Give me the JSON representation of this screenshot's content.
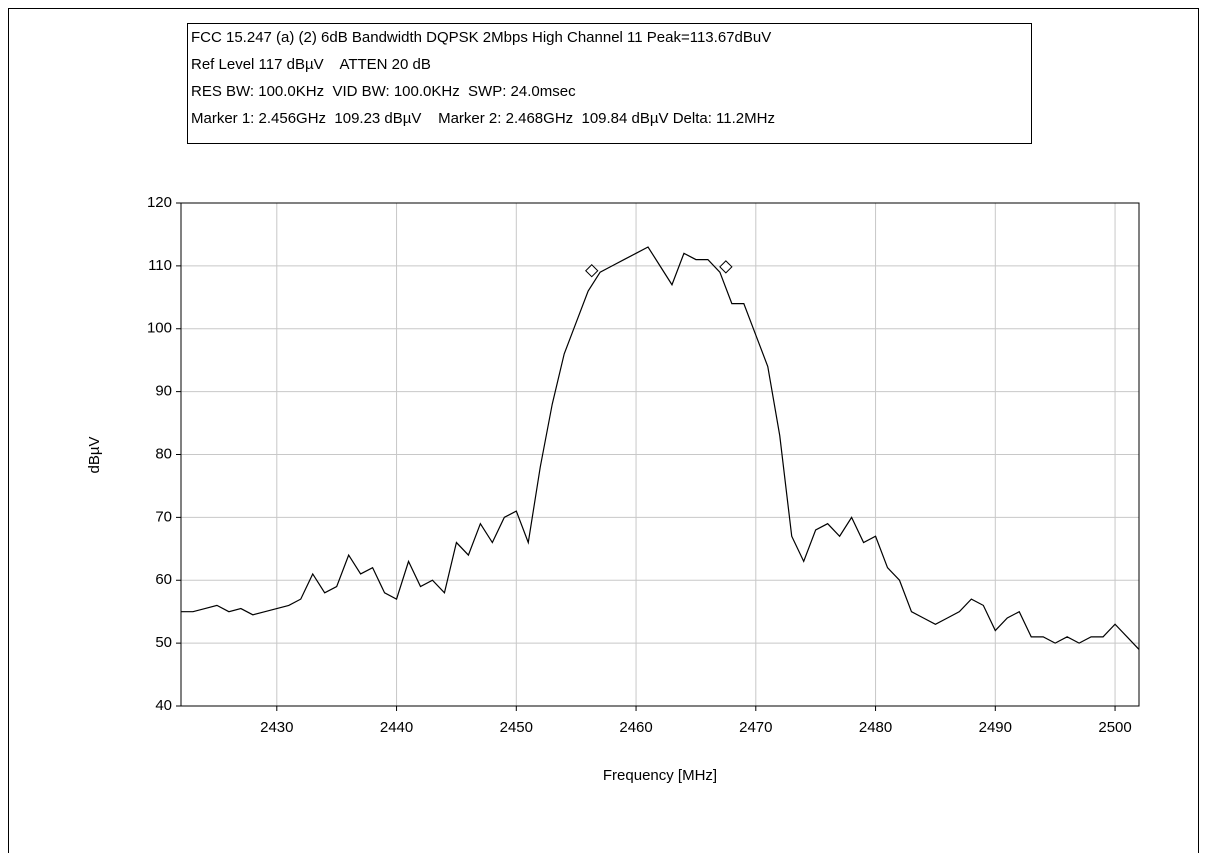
{
  "chart_data": {
    "type": "line",
    "title_lines": [
      "FCC 15.247 (a) (2) 6dB Bandwidth DQPSK 2Mbps High Channel 11 Peak=113.67dBuV",
      "Ref Level 117 dBµV    ATTEN 20 dB",
      "RES BW: 100.0KHz  VID BW: 100.0KHz  SWP: 24.0msec",
      "Marker 1: 2.456GHz  109.23 dBµV    Marker 2: 2.468GHz  109.84 dBµV Delta: 11.2MHz"
    ],
    "xlabel": "Frequency [MHz]",
    "ylabel": "dBµV",
    "x": [
      2422,
      2423,
      2424,
      2425,
      2426,
      2427,
      2428,
      2429,
      2430,
      2431,
      2432,
      2433,
      2434,
      2435,
      2436,
      2437,
      2438,
      2439,
      2440,
      2441,
      2442,
      2443,
      2444,
      2445,
      2446,
      2447,
      2448,
      2449,
      2450,
      2451,
      2452,
      2453,
      2454,
      2455,
      2456,
      2457,
      2458,
      2459,
      2460,
      2461,
      2462,
      2463,
      2464,
      2465,
      2466,
      2467,
      2468,
      2469,
      2470,
      2471,
      2472,
      2473,
      2474,
      2475,
      2476,
      2477,
      2478,
      2479,
      2480,
      2481,
      2482,
      2483,
      2484,
      2485,
      2486,
      2487,
      2488,
      2489,
      2490,
      2491,
      2492,
      2493,
      2494,
      2495,
      2496,
      2497,
      2498,
      2499,
      2500,
      2501,
      2502
    ],
    "series": [
      {
        "name": "trace",
        "color": "#000000",
        "values": [
          55,
          55,
          55.5,
          56,
          55,
          55.5,
          54.5,
          55,
          55.5,
          56,
          57,
          61,
          58,
          59,
          64,
          61,
          62,
          58,
          57,
          63,
          59,
          60,
          58,
          66,
          64,
          69,
          66,
          70,
          71,
          66,
          78,
          88,
          96,
          101,
          106,
          109,
          110,
          111,
          112,
          113,
          110,
          107,
          112,
          111,
          111,
          109,
          104,
          104,
          99,
          94,
          83,
          67,
          63,
          68,
          69,
          67,
          70,
          66,
          67,
          62,
          60,
          55,
          54,
          53,
          54,
          55,
          57,
          56,
          52,
          54,
          55,
          51,
          51,
          50,
          51,
          50,
          51,
          51,
          53,
          51,
          49
        ]
      }
    ],
    "markers": [
      {
        "x": 2456.3,
        "y": 109.23
      },
      {
        "x": 2467.5,
        "y": 109.84
      }
    ],
    "xlim": [
      2422,
      2502
    ],
    "ylim": [
      40,
      120
    ],
    "xticks": [
      2430,
      2440,
      2450,
      2460,
      2470,
      2480,
      2490,
      2500
    ],
    "yticks": [
      40,
      50,
      60,
      70,
      80,
      90,
      100,
      110,
      120
    ],
    "grid": true
  }
}
